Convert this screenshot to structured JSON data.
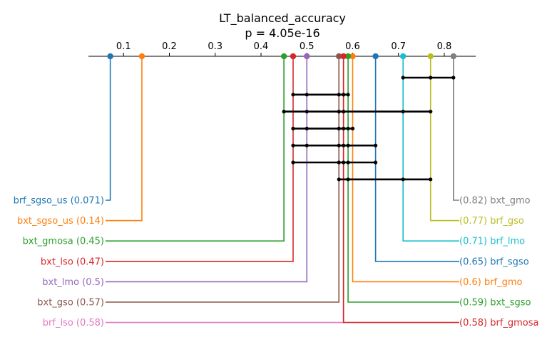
{
  "chart_data": {
    "type": "critical-difference",
    "title": "LT_balanced_accuracy",
    "subtitle": "p = 4.05e-16",
    "axis": {
      "range": [
        0.0,
        0.85
      ],
      "ticks": [
        0.1,
        0.2,
        0.3,
        0.4,
        0.5,
        0.6,
        0.7,
        0.8
      ],
      "tick_labels": [
        "0.1",
        "0.2",
        "0.3",
        "0.4",
        "0.5",
        "0.6",
        "0.7",
        "0.8"
      ]
    },
    "left_methods": [
      {
        "name": "brf_sgso_us",
        "value": 0.071,
        "label": "brf_sgso_us (0.071)",
        "color": "#1f77b4"
      },
      {
        "name": "bxt_sgso_us",
        "value": 0.14,
        "label": "bxt_sgso_us (0.14)",
        "color": "#ff7f0e"
      },
      {
        "name": "bxt_gmosa",
        "value": 0.45,
        "label": "bxt_gmosa (0.45)",
        "color": "#2ca02c"
      },
      {
        "name": "bxt_lso",
        "value": 0.47,
        "label": "bxt_lso (0.47)",
        "color": "#d62728"
      },
      {
        "name": "bxt_lmo",
        "value": 0.5,
        "label": "bxt_lmo (0.5)",
        "color": "#9467bd"
      },
      {
        "name": "bxt_gso",
        "value": 0.57,
        "label": "bxt_gso (0.57)",
        "color": "#8c564b"
      },
      {
        "name": "brf_lso",
        "value": 0.58,
        "label": "brf_lso (0.58)",
        "color": "#e377c2"
      }
    ],
    "right_methods": [
      {
        "name": "bxt_gmo",
        "value": 0.82,
        "label": "(0.82) bxt_gmo",
        "color": "#7f7f7f"
      },
      {
        "name": "brf_gso",
        "value": 0.77,
        "label": "(0.77) brf_gso",
        "color": "#bcbd22"
      },
      {
        "name": "brf_lmo",
        "value": 0.71,
        "label": "(0.71) brf_lmo",
        "color": "#17becf"
      },
      {
        "name": "brf_sgso",
        "value": 0.65,
        "label": "(0.65) brf_sgso",
        "color": "#1f77b4"
      },
      {
        "name": "brf_gmo",
        "value": 0.6,
        "label": "(0.6) brf_gmo",
        "color": "#ff7f0e"
      },
      {
        "name": "bxt_sgso",
        "value": 0.59,
        "label": "(0.59) bxt_sgso",
        "color": "#2ca02c"
      },
      {
        "name": "brf_gmosa",
        "value": 0.58,
        "label": "(0.58) brf_gmosa",
        "color": "#d62728"
      }
    ],
    "cliques": [
      {
        "values": [
          0.71,
          0.77,
          0.82
        ]
      },
      {
        "values": [
          0.47,
          0.5,
          0.57,
          0.58,
          0.58,
          0.59
        ]
      },
      {
        "values": [
          0.45,
          0.5,
          0.57,
          0.58,
          0.71,
          0.77
        ]
      },
      {
        "values": [
          0.47,
          0.5,
          0.57,
          0.58,
          0.59,
          0.6
        ]
      },
      {
        "values": [
          0.47,
          0.5,
          0.57,
          0.58,
          0.59,
          0.65
        ]
      },
      {
        "values": [
          0.47,
          0.57,
          0.58,
          0.59,
          0.65
        ]
      },
      {
        "values": [
          0.57,
          0.59,
          0.71,
          0.77
        ]
      }
    ]
  }
}
